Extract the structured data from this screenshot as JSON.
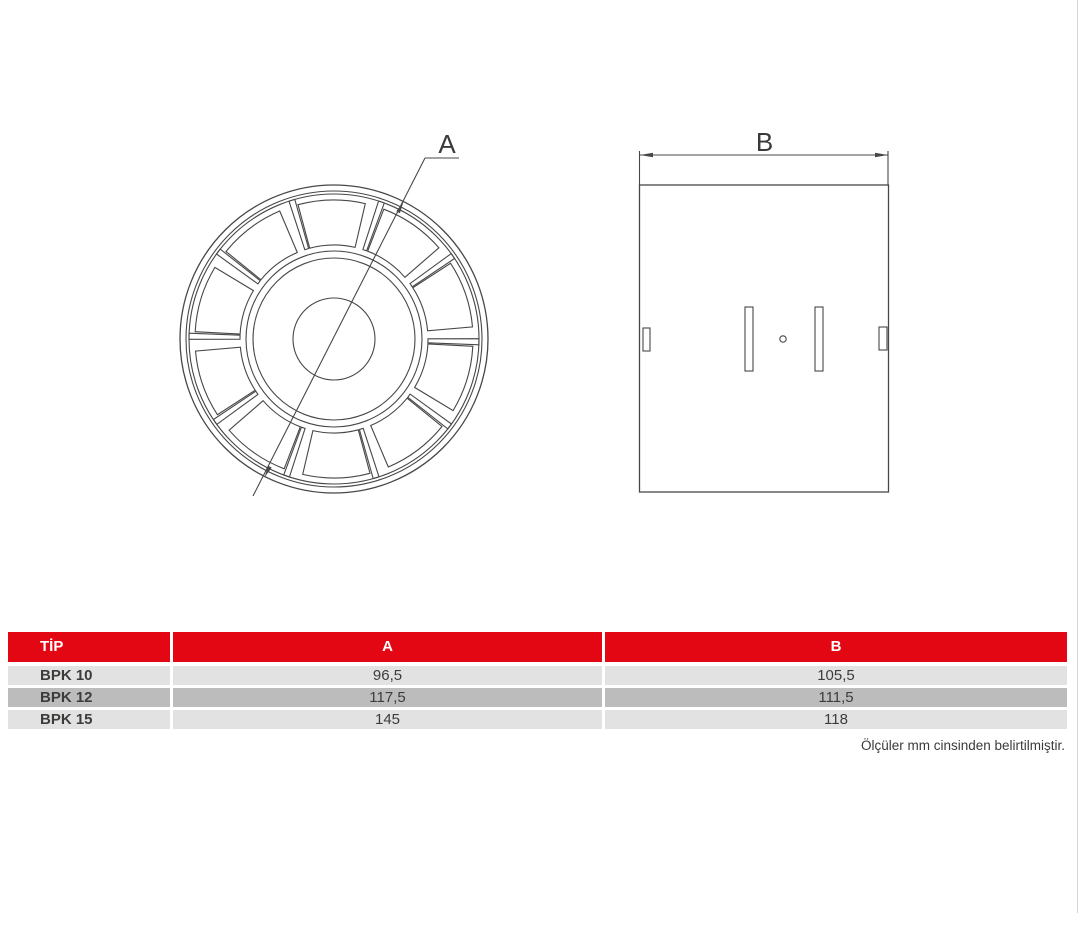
{
  "page": {
    "note": "Ölçüler mm cinsinden belirtilmiştir."
  },
  "drawings": {
    "front_view_label": "A",
    "side_view_label": "B"
  },
  "table": {
    "headers": {
      "tip": "TİP",
      "a": "A",
      "b": "B"
    },
    "rows": [
      {
        "tip": "BPK 10",
        "a": "96,5",
        "b": "105,5"
      },
      {
        "tip": "BPK 12",
        "a": "117,5",
        "b": "111,5"
      },
      {
        "tip": "BPK 15",
        "a": "145",
        "b": "118"
      }
    ]
  },
  "colors": {
    "header_red": "#e30613",
    "row_light": "#e2e2e2",
    "row_dark": "#bcbcbc",
    "line": "#474747",
    "text": "#3c3c3b"
  }
}
